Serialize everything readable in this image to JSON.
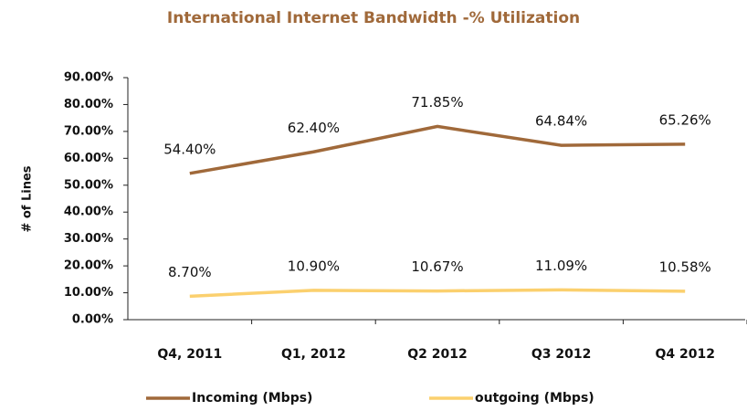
{
  "chart_data": {
    "type": "line",
    "title": "International  Internet  Bandwidth  -% Utilization",
    "y_label": "# of Lines",
    "categories": [
      "Q4, 2011",
      "Q1, 2012",
      "Q2 2012",
      "Q3 2012",
      "Q4 2012"
    ],
    "series": [
      {
        "name": "Incoming (Mbps)",
        "color": "#a0693a",
        "values": [
          54.4,
          62.4,
          71.85,
          64.84,
          65.26
        ],
        "value_labels": [
          "54.40%",
          "62.40%",
          "71.85%",
          "64.84%",
          "65.26%"
        ]
      },
      {
        "name": "outgoing (Mbps)",
        "color": "#fbd06e",
        "values": [
          8.7,
          10.9,
          10.67,
          11.09,
          10.58
        ],
        "value_labels": [
          "8.70%",
          "10.90%",
          "10.67%",
          "11.09%",
          "10.58%"
        ]
      }
    ],
    "ylim": [
      0,
      90
    ],
    "yticks": [
      {
        "value": 0,
        "label": "0.00%"
      },
      {
        "value": 10,
        "label": "10.00%"
      },
      {
        "value": 20,
        "label": "20.00%"
      },
      {
        "value": 30,
        "label": "30.00%"
      },
      {
        "value": 40,
        "label": "40.00%"
      },
      {
        "value": 50,
        "label": "50.00%"
      },
      {
        "value": 60,
        "label": "60.00%"
      },
      {
        "value": 70,
        "label": "70.00%"
      },
      {
        "value": 80,
        "label": "80.00%"
      },
      {
        "value": 90,
        "label": "90.00%"
      }
    ],
    "legend": "bottom",
    "grid": false
  }
}
